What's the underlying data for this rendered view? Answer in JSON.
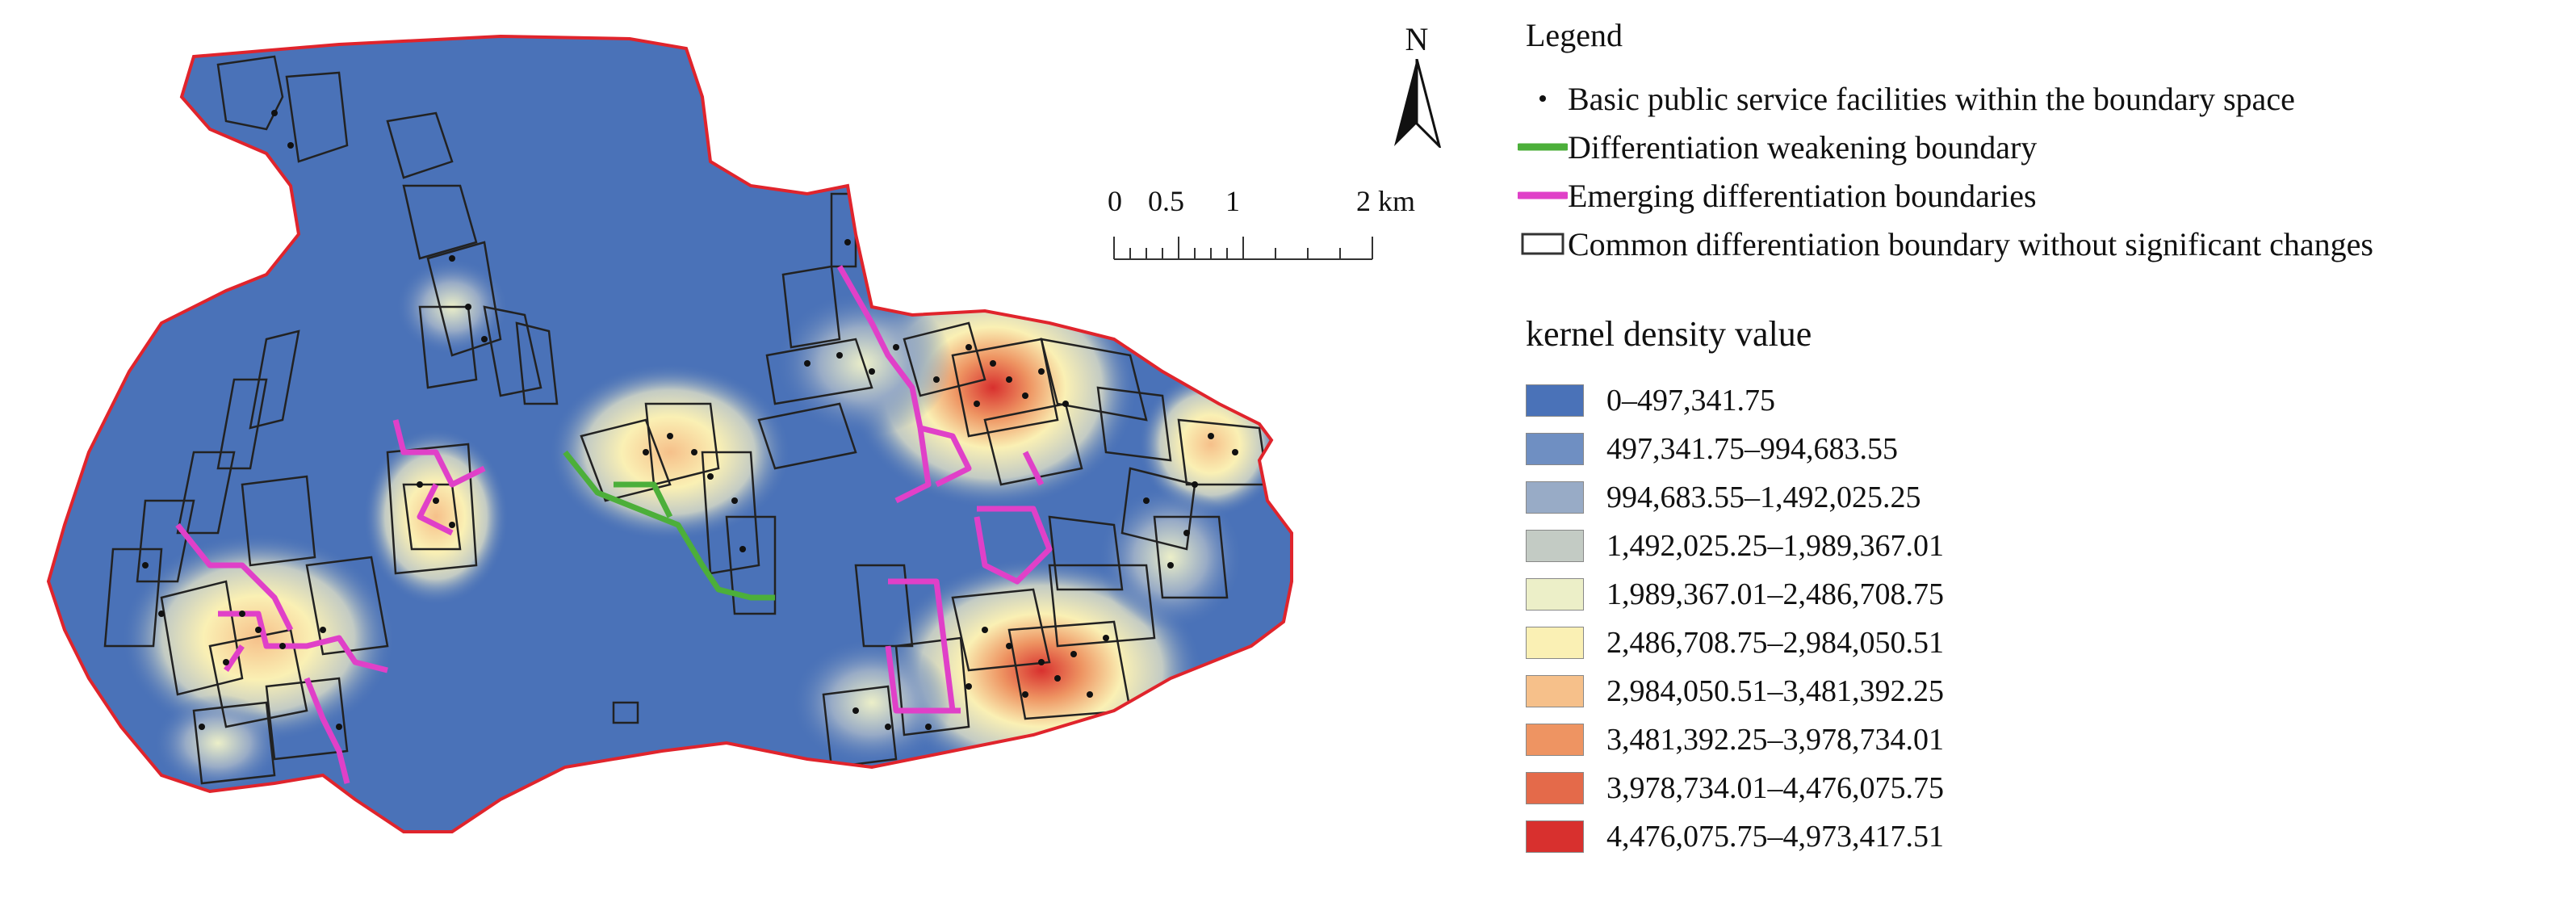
{
  "north": {
    "label": "N",
    "icon": "north-arrow-icon"
  },
  "scale": {
    "ticks": [
      "0",
      "0.5",
      "1",
      "2 km"
    ]
  },
  "legend": {
    "title": "Legend",
    "items": [
      {
        "label": "Basic public service facilities within the boundary space",
        "icon": "facility-point-icon",
        "color": "#111111"
      },
      {
        "label": "Differentiation weakening boundary",
        "icon": "green-line-icon",
        "color": "#4caf3a"
      },
      {
        "label": "Emerging differentiation boundaries",
        "icon": "magenta-line-icon",
        "color": "#e040c8"
      },
      {
        "label": "Common differentiation boundary without significant changes",
        "icon": "outline-box-icon",
        "color": "#333333"
      }
    ]
  },
  "kernel_density": {
    "title": "kernel density value",
    "classes": [
      {
        "label": "0–497,341.75",
        "color": "#4a72b8"
      },
      {
        "label": "497,341.75–994,683.55",
        "color": "#6f8fc2"
      },
      {
        "label": "994,683.55–1,492,025.25",
        "color": "#98abc6"
      },
      {
        "label": "1,492,025.25–1,989,367.01",
        "color": "#c3cbc4"
      },
      {
        "label": "1,989,367.01–2,486,708.75",
        "color": "#ecefc8"
      },
      {
        "label": "2,486,708.75–2,984,050.51",
        "color": "#faf0b4"
      },
      {
        "label": "2,984,050.51–3,481,392.25",
        "color": "#f6c08a"
      },
      {
        "label": "3,481,392.25–3,978,734.01",
        "color": "#ee9462"
      },
      {
        "label": "3,978,734.01–4,476,075.75",
        "color": "#e46a4a"
      },
      {
        "label": "4,476,075.75–4,973,417.51",
        "color": "#d8302e"
      }
    ]
  },
  "map": {
    "boundary_color": "#e0242c",
    "base_color": "#4a72b8"
  }
}
